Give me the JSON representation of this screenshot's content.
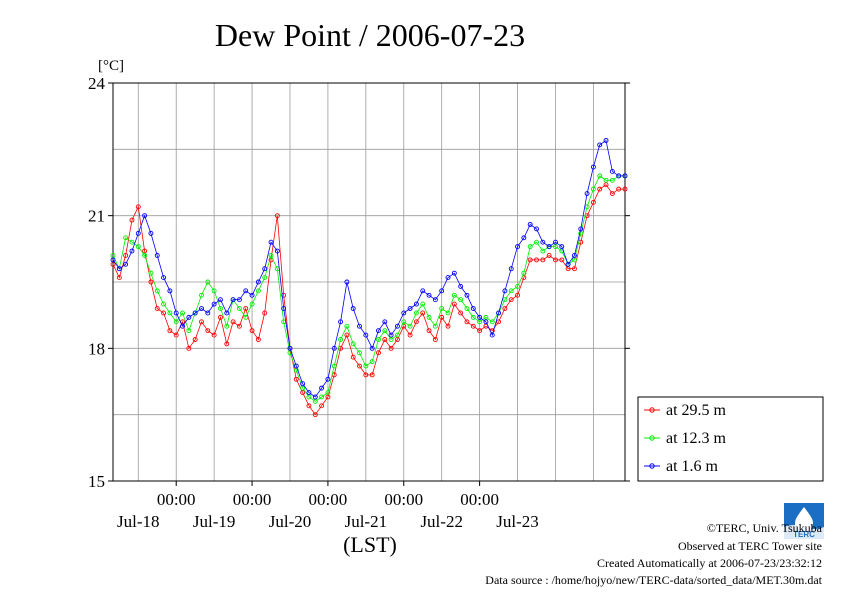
{
  "chart_data": {
    "type": "line",
    "title": "Dew Point / 2006-07-23",
    "y_unit": "[°C]",
    "xlabel": "(LST)",
    "ylim": [
      15,
      24
    ],
    "yticks": [
      "15",
      "18",
      "21",
      "24"
    ],
    "x_range_hours": [
      -20,
      142
    ],
    "x_time_ticks": [
      "00:00",
      "00:00",
      "00:00",
      "00:00",
      "00:00"
    ],
    "x_date_labels": [
      "Jul-18",
      "Jul-19",
      "Jul-20",
      "Jul-21",
      "Jul-22",
      "Jul-23"
    ],
    "grid": true,
    "legend_placement": "bottom-right, outside plot",
    "colors": {
      "29.5m": "#ff0000",
      "12.3m": "#00ee00",
      "1.6m": "#0000ff"
    },
    "series": [
      {
        "name": "at 29.5 m",
        "color": "#ff0000",
        "points": [
          [
            -20,
            19.9
          ],
          [
            -18,
            19.6
          ],
          [
            -16,
            20.1
          ],
          [
            -14,
            20.9
          ],
          [
            -12,
            21.2
          ],
          [
            -10,
            20.2
          ],
          [
            -8,
            19.5
          ],
          [
            -6,
            18.9
          ],
          [
            -4,
            18.8
          ],
          [
            -2,
            18.4
          ],
          [
            0,
            18.3
          ],
          [
            2,
            18.6
          ],
          [
            4,
            18.0
          ],
          [
            6,
            18.2
          ],
          [
            8,
            18.6
          ],
          [
            10,
            18.4
          ],
          [
            12,
            18.3
          ],
          [
            14,
            18.7
          ],
          [
            16,
            18.1
          ],
          [
            18,
            18.6
          ],
          [
            20,
            18.5
          ],
          [
            22,
            18.9
          ],
          [
            24,
            18.4
          ],
          [
            26,
            18.2
          ],
          [
            28,
            18.8
          ],
          [
            30,
            20.0
          ],
          [
            32,
            21.0
          ],
          [
            34,
            19.2
          ],
          [
            36,
            18.0
          ],
          [
            38,
            17.3
          ],
          [
            40,
            17.0
          ],
          [
            42,
            16.7
          ],
          [
            44,
            16.5
          ],
          [
            46,
            16.7
          ],
          [
            48,
            16.9
          ],
          [
            50,
            17.4
          ],
          [
            52,
            18.0
          ],
          [
            54,
            18.3
          ],
          [
            56,
            17.8
          ],
          [
            58,
            17.6
          ],
          [
            60,
            17.4
          ],
          [
            62,
            17.4
          ],
          [
            64,
            17.9
          ],
          [
            66,
            18.2
          ],
          [
            68,
            18.0
          ],
          [
            70,
            18.2
          ],
          [
            72,
            18.5
          ],
          [
            74,
            18.3
          ],
          [
            76,
            18.6
          ],
          [
            78,
            18.8
          ],
          [
            80,
            18.4
          ],
          [
            82,
            18.2
          ],
          [
            84,
            18.7
          ],
          [
            86,
            18.5
          ],
          [
            88,
            19.0
          ],
          [
            90,
            18.8
          ],
          [
            92,
            18.6
          ],
          [
            94,
            18.5
          ],
          [
            96,
            18.4
          ],
          [
            98,
            18.5
          ],
          [
            100,
            18.4
          ],
          [
            102,
            18.6
          ],
          [
            104,
            18.9
          ],
          [
            106,
            19.1
          ],
          [
            108,
            19.2
          ],
          [
            110,
            19.6
          ],
          [
            112,
            20.0
          ],
          [
            114,
            20.0
          ],
          [
            116,
            20.0
          ],
          [
            118,
            20.1
          ],
          [
            120,
            20.0
          ],
          [
            122,
            20.0
          ],
          [
            124,
            19.8
          ],
          [
            126,
            19.8
          ],
          [
            128,
            20.4
          ],
          [
            130,
            21.0
          ],
          [
            132,
            21.3
          ],
          [
            134,
            21.6
          ],
          [
            136,
            21.7
          ],
          [
            138,
            21.5
          ],
          [
            140,
            21.6
          ],
          [
            142,
            21.6
          ]
        ]
      },
      {
        "name": "at 12.3 m",
        "color": "#00ee00",
        "points": [
          [
            -20,
            20.1
          ],
          [
            -18,
            19.8
          ],
          [
            -16,
            20.5
          ],
          [
            -14,
            20.4
          ],
          [
            -12,
            20.3
          ],
          [
            -10,
            20.1
          ],
          [
            -8,
            19.7
          ],
          [
            -6,
            19.3
          ],
          [
            -4,
            19.0
          ],
          [
            -2,
            18.8
          ],
          [
            0,
            18.6
          ],
          [
            2,
            18.8
          ],
          [
            4,
            18.4
          ],
          [
            6,
            18.8
          ],
          [
            8,
            19.2
          ],
          [
            10,
            19.5
          ],
          [
            12,
            19.3
          ],
          [
            14,
            18.9
          ],
          [
            16,
            18.5
          ],
          [
            18,
            19.1
          ],
          [
            20,
            18.9
          ],
          [
            22,
            18.7
          ],
          [
            24,
            19.0
          ],
          [
            26,
            19.3
          ],
          [
            28,
            19.6
          ],
          [
            30,
            20.1
          ],
          [
            32,
            19.8
          ],
          [
            34,
            18.6
          ],
          [
            36,
            17.9
          ],
          [
            38,
            17.5
          ],
          [
            40,
            17.1
          ],
          [
            42,
            16.9
          ],
          [
            44,
            16.8
          ],
          [
            46,
            16.9
          ],
          [
            48,
            17.0
          ],
          [
            50,
            17.6
          ],
          [
            52,
            18.2
          ],
          [
            54,
            18.5
          ],
          [
            56,
            18.1
          ],
          [
            58,
            17.9
          ],
          [
            60,
            17.6
          ],
          [
            62,
            17.7
          ],
          [
            64,
            18.2
          ],
          [
            66,
            18.4
          ],
          [
            68,
            18.2
          ],
          [
            70,
            18.3
          ],
          [
            72,
            18.6
          ],
          [
            74,
            18.5
          ],
          [
            76,
            18.8
          ],
          [
            78,
            19.0
          ],
          [
            80,
            18.7
          ],
          [
            82,
            18.5
          ],
          [
            84,
            18.9
          ],
          [
            86,
            18.8
          ],
          [
            88,
            19.2
          ],
          [
            90,
            19.1
          ],
          [
            92,
            18.9
          ],
          [
            94,
            18.7
          ],
          [
            96,
            18.6
          ],
          [
            98,
            18.7
          ],
          [
            100,
            18.6
          ],
          [
            102,
            18.8
          ],
          [
            104,
            19.1
          ],
          [
            106,
            19.3
          ],
          [
            108,
            19.4
          ],
          [
            110,
            19.7
          ],
          [
            112,
            20.3
          ],
          [
            114,
            20.4
          ],
          [
            116,
            20.2
          ],
          [
            118,
            20.3
          ],
          [
            120,
            20.3
          ],
          [
            122,
            20.2
          ],
          [
            124,
            19.9
          ],
          [
            126,
            20.0
          ],
          [
            128,
            20.6
          ],
          [
            130,
            21.2
          ],
          [
            132,
            21.6
          ],
          [
            134,
            21.9
          ],
          [
            136,
            21.8
          ],
          [
            138,
            21.8
          ],
          [
            140,
            21.9
          ],
          [
            142,
            21.9
          ]
        ]
      },
      {
        "name": "at 1.6 m",
        "color": "#0000ff",
        "points": [
          [
            -20,
            20.0
          ],
          [
            -18,
            19.8
          ],
          [
            -16,
            19.9
          ],
          [
            -14,
            20.2
          ],
          [
            -12,
            20.6
          ],
          [
            -10,
            21.0
          ],
          [
            -8,
            20.6
          ],
          [
            -6,
            20.1
          ],
          [
            -4,
            19.6
          ],
          [
            -2,
            19.3
          ],
          [
            0,
            18.8
          ],
          [
            2,
            18.5
          ],
          [
            4,
            18.7
          ],
          [
            6,
            18.8
          ],
          [
            8,
            18.9
          ],
          [
            10,
            18.8
          ],
          [
            12,
            19.0
          ],
          [
            14,
            19.1
          ],
          [
            16,
            18.8
          ],
          [
            18,
            19.1
          ],
          [
            20,
            19.1
          ],
          [
            22,
            19.3
          ],
          [
            24,
            19.2
          ],
          [
            26,
            19.5
          ],
          [
            28,
            19.8
          ],
          [
            30,
            20.4
          ],
          [
            32,
            20.2
          ],
          [
            34,
            18.9
          ],
          [
            36,
            18.0
          ],
          [
            38,
            17.6
          ],
          [
            40,
            17.2
          ],
          [
            42,
            17.0
          ],
          [
            44,
            16.9
          ],
          [
            46,
            17.1
          ],
          [
            48,
            17.3
          ],
          [
            50,
            18.0
          ],
          [
            52,
            18.6
          ],
          [
            54,
            19.5
          ],
          [
            56,
            18.9
          ],
          [
            58,
            18.5
          ],
          [
            60,
            18.3
          ],
          [
            62,
            18.0
          ],
          [
            64,
            18.4
          ],
          [
            66,
            18.6
          ],
          [
            68,
            18.3
          ],
          [
            70,
            18.5
          ],
          [
            72,
            18.8
          ],
          [
            74,
            18.9
          ],
          [
            76,
            19.0
          ],
          [
            78,
            19.3
          ],
          [
            80,
            19.2
          ],
          [
            82,
            19.1
          ],
          [
            84,
            19.3
          ],
          [
            86,
            19.6
          ],
          [
            88,
            19.7
          ],
          [
            90,
            19.4
          ],
          [
            92,
            19.2
          ],
          [
            94,
            18.9
          ],
          [
            96,
            18.7
          ],
          [
            98,
            18.6
          ],
          [
            100,
            18.3
          ],
          [
            102,
            18.8
          ],
          [
            104,
            19.3
          ],
          [
            106,
            19.8
          ],
          [
            108,
            20.3
          ],
          [
            110,
            20.5
          ],
          [
            112,
            20.8
          ],
          [
            114,
            20.7
          ],
          [
            116,
            20.4
          ],
          [
            118,
            20.3
          ],
          [
            120,
            20.4
          ],
          [
            122,
            20.3
          ],
          [
            124,
            19.9
          ],
          [
            126,
            20.1
          ],
          [
            128,
            20.7
          ],
          [
            130,
            21.5
          ],
          [
            132,
            22.1
          ],
          [
            134,
            22.6
          ],
          [
            136,
            22.7
          ],
          [
            138,
            22.0
          ],
          [
            140,
            21.9
          ],
          [
            142,
            21.9
          ]
        ]
      }
    ]
  },
  "credits": {
    "copyright": "©TERC, Univ. Tsukuba",
    "observed": "Observed at TERC Tower site",
    "created": "Created Automatically at 2006-07-23/23:32:12",
    "source": "Data source : /home/hojyo/new/TERC-data/sorted_data/MET.30m.dat"
  },
  "logo": {
    "icon": "terc-logo-icon",
    "text": "TERC",
    "color": "#1a6fc4"
  }
}
